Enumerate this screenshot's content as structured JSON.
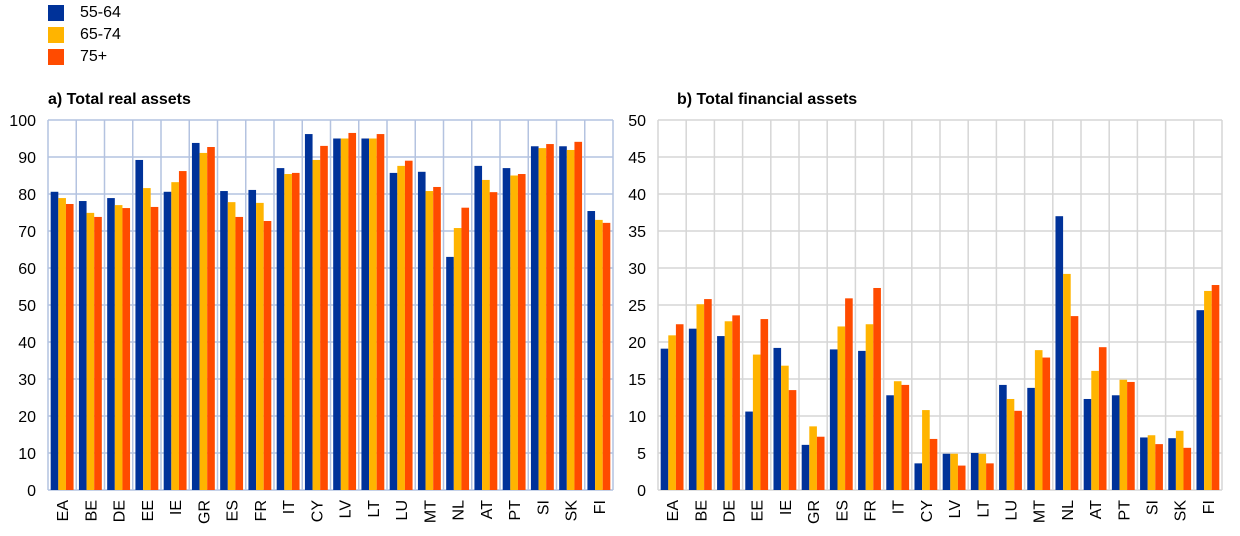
{
  "legend": [
    {
      "label": "55-64",
      "color": "#003299"
    },
    {
      "label": "65-74",
      "color": "#FFB400"
    },
    {
      "label": "75+",
      "color": "#FF4B00"
    }
  ],
  "chart_data": [
    {
      "type": "bar",
      "title": "a) Total real assets",
      "xlabel": "",
      "ylabel": "",
      "ylim": [
        0,
        100
      ],
      "yticks": [
        0,
        10,
        20,
        30,
        40,
        50,
        60,
        70,
        80,
        90,
        100
      ],
      "grid": true,
      "legend_position": "top-left",
      "categories": [
        "EA",
        "BE",
        "DE",
        "EE",
        "IE",
        "GR",
        "ES",
        "FR",
        "IT",
        "CY",
        "LV",
        "LT",
        "LU",
        "MT",
        "NL",
        "AT",
        "PT",
        "SI",
        "SK",
        "FI"
      ],
      "series": [
        {
          "name": "55-64",
          "values": [
            80.6,
            78.1,
            78.9,
            89.2,
            80.6,
            93.8,
            80.8,
            81.1,
            87.0,
            96.2,
            95.0,
            95.0,
            85.7,
            86.0,
            63.0,
            87.6,
            87.0,
            92.9,
            92.9,
            75.4
          ]
        },
        {
          "name": "65-74",
          "values": [
            78.9,
            74.9,
            77.0,
            81.6,
            83.2,
            91.1,
            77.8,
            77.6,
            85.4,
            89.2,
            95.0,
            95.0,
            87.6,
            80.8,
            70.8,
            83.8,
            85.0,
            92.4,
            91.9,
            73.0
          ]
        },
        {
          "name": "75+",
          "values": [
            77.3,
            73.8,
            76.2,
            76.5,
            86.2,
            92.7,
            73.8,
            72.7,
            85.7,
            93.0,
            96.5,
            96.2,
            89.0,
            81.9,
            76.3,
            80.5,
            85.4,
            93.5,
            94.1,
            72.2
          ]
        }
      ]
    },
    {
      "type": "bar",
      "title": "b) Total financial assets",
      "xlabel": "",
      "ylabel": "",
      "ylim": [
        0,
        50
      ],
      "yticks": [
        0,
        5,
        10,
        15,
        20,
        25,
        30,
        35,
        40,
        45,
        50
      ],
      "grid": true,
      "legend_position": "top-left",
      "categories": [
        "EA",
        "BE",
        "DE",
        "EE",
        "IE",
        "GR",
        "ES",
        "FR",
        "IT",
        "CY",
        "LV",
        "LT",
        "LU",
        "MT",
        "NL",
        "AT",
        "PT",
        "SI",
        "SK",
        "FI"
      ],
      "series": [
        {
          "name": "55-64",
          "values": [
            19.1,
            21.8,
            20.8,
            10.6,
            19.2,
            6.1,
            19.0,
            18.8,
            12.8,
            3.6,
            4.9,
            5.0,
            14.2,
            13.8,
            37.0,
            12.3,
            12.8,
            7.1,
            7.0,
            24.3
          ]
        },
        {
          "name": "65-74",
          "values": [
            20.9,
            25.1,
            22.8,
            18.3,
            16.8,
            8.6,
            22.1,
            22.4,
            14.7,
            10.8,
            4.9,
            4.9,
            12.3,
            18.9,
            29.2,
            16.1,
            14.9,
            7.4,
            8.0,
            26.9
          ]
        },
        {
          "name": "75+",
          "values": [
            22.4,
            25.8,
            23.6,
            23.1,
            13.5,
            7.2,
            25.9,
            27.3,
            14.2,
            6.9,
            3.3,
            3.6,
            10.7,
            17.9,
            23.5,
            19.3,
            14.6,
            6.2,
            5.7,
            27.7
          ]
        }
      ]
    }
  ]
}
